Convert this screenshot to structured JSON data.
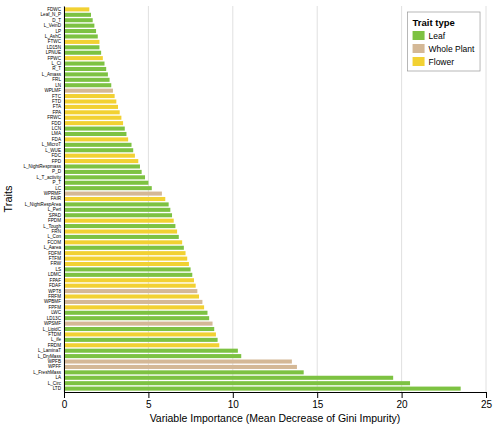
{
  "chart_data": {
    "type": "bar",
    "orientation": "horizontal",
    "stacked": true,
    "xlabel": "Variable Importance (Mean Decrease of Gini Impurity)",
    "ylabel": "Traits",
    "legend_title": "Trait type",
    "legend": "top-right",
    "grid": true,
    "xlim": [
      0,
      25
    ],
    "xticks": [
      0,
      5,
      10,
      15,
      20,
      25
    ],
    "categories": [
      "LTD",
      "L_Circ",
      "LA",
      "L_FreshMass",
      "WPFF",
      "WPFB",
      "L_DryMass",
      "L_LaminaT",
      "FRDM",
      "L_ife",
      "FTDM",
      "L_LipidC",
      "WPSMF",
      "LD13C",
      "LWC",
      "FPFM",
      "WPBMF",
      "FRFM",
      "WPT8",
      "FDAF",
      "FPAF",
      "LDMC",
      "LS",
      "FRW",
      "FTFM",
      "FDFM",
      "L_Aarea",
      "FCOM",
      "L_Con",
      "FRN",
      "L_Tough",
      "FPDM",
      "SPAD",
      "L_Peri",
      "L_NightRespArea",
      "FAIR",
      "WPRMF",
      "LC",
      "P_T",
      "L_T_activity",
      "P_D",
      "L_NightRespmass",
      "FPD",
      "FDC",
      "L_WUE",
      "L_MicroT",
      "FDA",
      "LMA",
      "LCN",
      "FDD",
      "FRWC",
      "FPA",
      "FTA",
      "FTD",
      "FTC",
      "WPLMF",
      "LN",
      "FRL",
      "L_Amass",
      "R_T",
      "L_Ci",
      "FPWC",
      "LPNUE",
      "LD15N",
      "FTWC",
      "L_AshC",
      "LP",
      "L_VeinD",
      "D_T",
      "Leaf_N_P",
      "FDWC"
    ],
    "series": [
      {
        "name": "Leaf",
        "color": "#7DC242",
        "values": [
          23.5,
          20.5,
          19.5,
          14.2,
          null,
          null,
          10.5,
          10.3,
          null,
          9.1,
          null,
          8.9,
          null,
          8.6,
          8.5,
          null,
          null,
          null,
          null,
          null,
          null,
          7.6,
          7.5,
          null,
          null,
          null,
          7.1,
          null,
          6.8,
          null,
          6.6,
          null,
          6.4,
          6.3,
          6.2,
          null,
          null,
          5.2,
          5.0,
          4.8,
          4.6,
          4.5,
          null,
          null,
          4.1,
          4.0,
          null,
          3.7,
          3.6,
          null,
          null,
          null,
          null,
          null,
          null,
          null,
          2.8,
          2.7,
          2.6,
          2.5,
          2.4,
          null,
          2.2,
          2.1,
          null,
          2.0,
          1.9,
          1.8,
          1.7,
          1.6,
          null
        ]
      },
      {
        "name": "Whole Plant",
        "color": "#D4B896",
        "values": [
          null,
          null,
          null,
          null,
          13.8,
          13.5,
          null,
          null,
          null,
          null,
          null,
          null,
          8.8,
          null,
          null,
          null,
          8.2,
          null,
          7.9,
          null,
          null,
          null,
          null,
          null,
          null,
          null,
          null,
          null,
          null,
          null,
          null,
          null,
          null,
          null,
          null,
          null,
          5.8,
          null,
          null,
          null,
          null,
          null,
          null,
          null,
          null,
          null,
          null,
          null,
          null,
          null,
          null,
          null,
          null,
          null,
          null,
          2.9,
          null,
          null,
          null,
          null,
          null,
          null,
          null,
          null,
          null,
          null,
          null,
          null,
          null,
          null,
          null
        ]
      },
      {
        "name": "Flower",
        "color": "#F2D132",
        "values": [
          null,
          null,
          null,
          null,
          null,
          null,
          null,
          null,
          9.2,
          null,
          9.0,
          null,
          null,
          null,
          null,
          8.3,
          null,
          8.0,
          null,
          7.8,
          7.7,
          null,
          null,
          7.4,
          7.3,
          7.2,
          null,
          7.0,
          null,
          6.7,
          null,
          6.5,
          null,
          null,
          null,
          6.0,
          null,
          null,
          null,
          null,
          null,
          null,
          4.4,
          4.2,
          null,
          null,
          3.8,
          null,
          null,
          3.5,
          3.4,
          3.3,
          3.2,
          3.1,
          3.0,
          null,
          null,
          null,
          null,
          null,
          null,
          2.3,
          null,
          null,
          2.1,
          null,
          null,
          null,
          null,
          null,
          1.5
        ]
      }
    ]
  }
}
